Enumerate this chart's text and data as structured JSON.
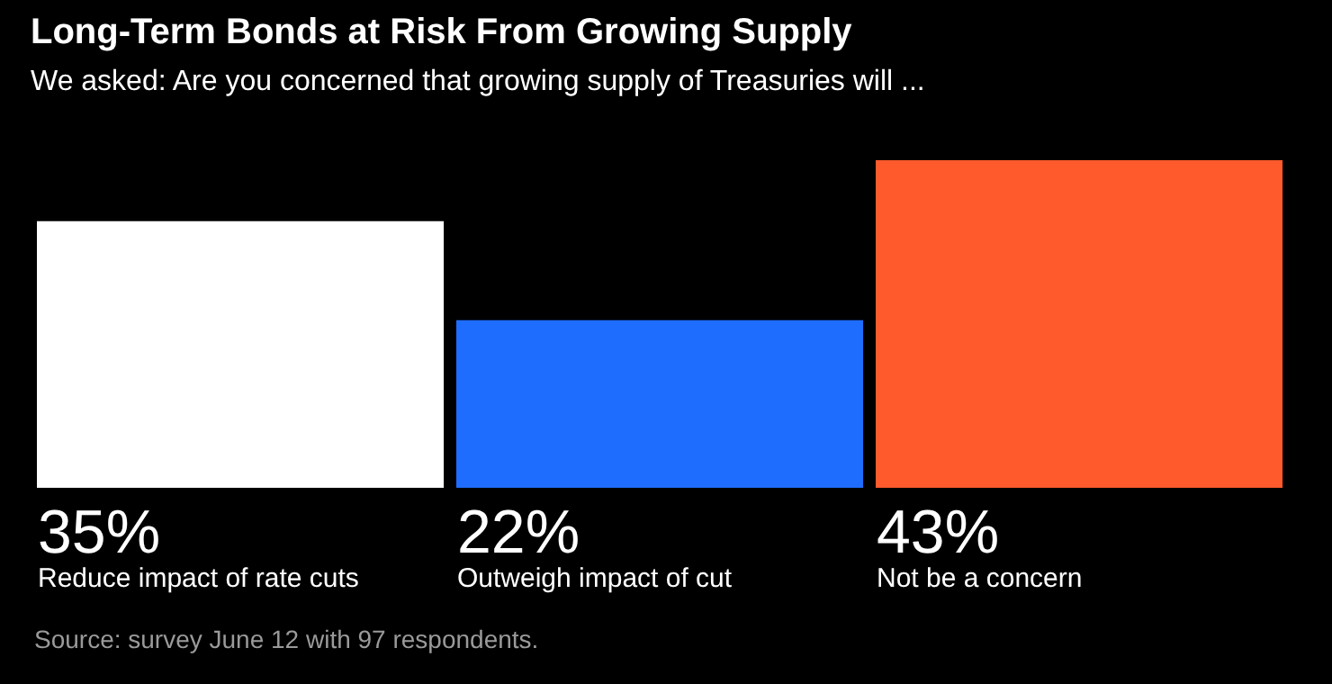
{
  "chart_data": {
    "type": "bar",
    "title": "Long-Term Bonds at Risk From Growing Supply",
    "subtitle": "We asked: Are you concerned that growing supply of Treasuries will ...",
    "categories": [
      "Reduce impact of rate cuts",
      "Outweigh impact of cut",
      "Not be a concern"
    ],
    "values": [
      35,
      22,
      43
    ],
    "colors": [
      "#ffffff",
      "#1f6dff",
      "#ff5a2c"
    ],
    "value_labels": [
      "35%",
      "22%",
      "43%"
    ],
    "annotations": [
      "Source: survey June 12 with 97 respondents."
    ]
  }
}
